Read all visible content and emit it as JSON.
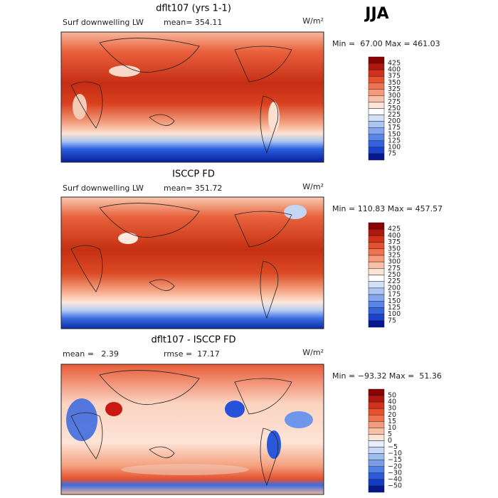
{
  "header": {
    "title": "JJA"
  },
  "panels": [
    {
      "title": "dflt107 (yrs 1-1)",
      "left": "Surf downwelling LW",
      "stat": "mean= 354.11",
      "units": "W/m²",
      "range": "Min =  67.00 Max = 461.03",
      "colorbar": [
        "425",
        "400",
        "375",
        "350",
        "325",
        "300",
        "275",
        "250",
        "225",
        "200",
        "175",
        "150",
        "125",
        "100",
        "75"
      ]
    },
    {
      "title": "ISCCP FD",
      "left": "Surf downwelling LW",
      "stat": "mean= 351.72",
      "units": "W/m²",
      "range": "Min = 110.83 Max = 457.57",
      "colorbar": [
        "425",
        "400",
        "375",
        "350",
        "325",
        "300",
        "275",
        "250",
        "225",
        "200",
        "175",
        "150",
        "125",
        "100",
        "75"
      ]
    },
    {
      "title": "dflt107 - ISCCP FD",
      "left": "mean =   2.39",
      "stat": "rmse =  17.17",
      "units": "W/m²",
      "range": "Min = −93.32 Max =  51.36",
      "colorbar": [
        "50",
        "40",
        "30",
        "20",
        "15",
        "10",
        "5",
        "0",
        "−5",
        "−10",
        "−15",
        "−20",
        "−30",
        "−40",
        "−50"
      ]
    }
  ]
}
